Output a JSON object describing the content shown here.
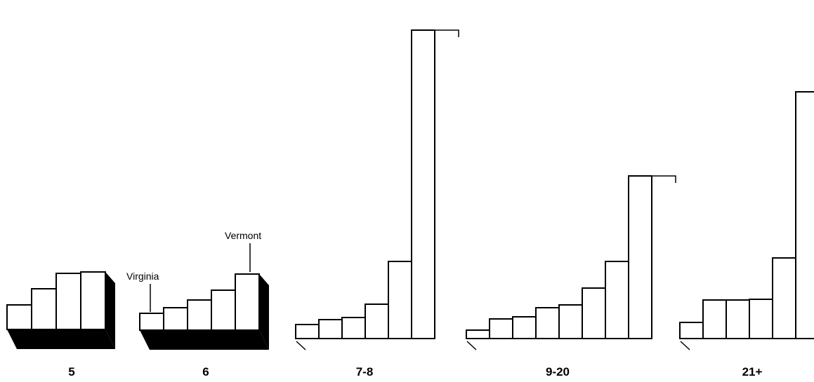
{
  "chart_data": {
    "type": "bar",
    "title": "",
    "xlabel": "",
    "ylabel": "",
    "groups": [
      {
        "label": "5",
        "values": [
          35,
          58,
          80,
          82
        ]
      },
      {
        "label": "6",
        "values": [
          24,
          32,
          43,
          57,
          80
        ]
      },
      {
        "label": "7-8",
        "values": [
          20,
          27,
          30,
          49,
          110,
          440
        ]
      },
      {
        "label": "9-20",
        "values": [
          12,
          28,
          31,
          44,
          48,
          72,
          110,
          232
        ]
      },
      {
        "label": "21+",
        "values": [
          23,
          55,
          55,
          56,
          115,
          352
        ]
      }
    ],
    "annotations": [
      {
        "text": "Virginia",
        "group": 1,
        "bar": 0
      },
      {
        "text": "Vermont",
        "group": 1,
        "bar": 4
      }
    ]
  }
}
